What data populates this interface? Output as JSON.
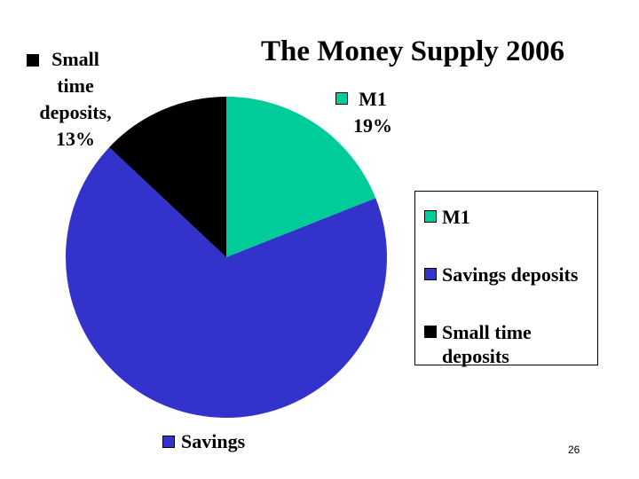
{
  "chart_data": {
    "type": "pie",
    "title": "The Money Supply 2006",
    "categories": [
      "M1",
      "Savings deposits",
      "Small time deposits"
    ],
    "values": [
      19,
      68,
      13
    ],
    "colors": [
      "#00cc99",
      "#3333cc",
      "#000000"
    ],
    "data_labels": [
      "M1",
      "Savings",
      "Small time deposits,"
    ],
    "value_labels": [
      "19%",
      null,
      "13%"
    ],
    "legend": "right"
  },
  "slide_number": 26
}
